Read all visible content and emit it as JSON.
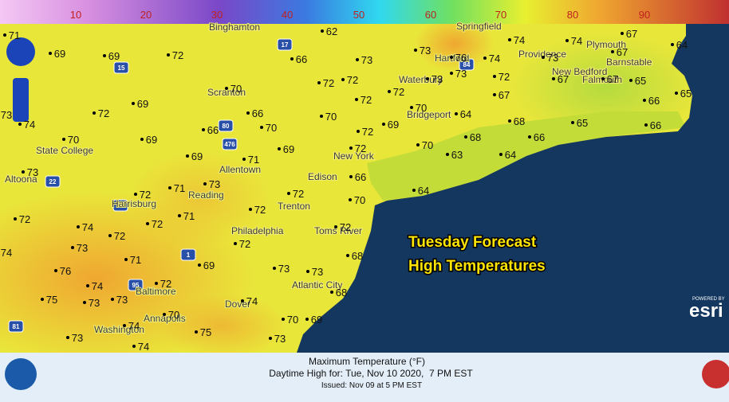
{
  "color_scale": {
    "labels": [
      10,
      20,
      30,
      40,
      50,
      60,
      70,
      80,
      90
    ]
  },
  "cities": [
    "Binghamton",
    "Springfield",
    "Hartford",
    "Providence",
    "Plymouth",
    "Barnstable",
    "New Bedford",
    "Falmouth",
    "Waterbury",
    "Scranton",
    "Bridgeport",
    "State College",
    "New York",
    "Allentown",
    "Altoona",
    "Edison",
    "Reading",
    "Harrisburg",
    "Trenton",
    "Philadelphia",
    "Toms River",
    "Baltimore",
    "Atlantic City",
    "Annapolis",
    "Dover",
    "Washington"
  ],
  "temperatures": [
    71,
    69,
    69,
    72,
    62,
    66,
    73,
    73,
    76,
    74,
    74,
    67,
    64,
    74,
    73,
    67,
    73,
    72,
    67,
    67,
    65,
    72,
    72,
    73,
    72,
    72,
    70,
    67,
    66,
    65,
    73,
    74,
    72,
    69,
    66,
    70,
    70,
    70,
    64,
    68,
    65,
    66,
    66,
    69,
    72,
    70,
    69,
    68,
    66,
    70,
    72,
    69,
    63,
    64,
    69,
    71,
    73,
    66,
    64,
    72,
    71,
    73,
    72,
    70,
    72,
    72,
    72,
    71,
    74,
    72,
    72,
    74,
    73,
    72,
    71,
    69,
    68,
    76,
    73,
    73,
    74,
    72,
    73,
    73,
    75,
    70,
    74,
    68,
    70,
    69,
    74,
    75,
    73,
    73,
    74
  ],
  "highways": [
    "80",
    "476",
    "15",
    "17",
    "22",
    "76",
    "1",
    "95",
    "84",
    "81"
  ],
  "caption": {
    "line1": "Tuesday Forecast",
    "line2": "High Temperatures"
  },
  "footer": {
    "title": "Maximum Temperature (°F)",
    "valid": "Daytime High for: Tue, Nov 10 2020,  7 PM EST",
    "issued": "Issued: Nov 09 at 5 PM EST"
  },
  "attribution": {
    "powered": "POWERED BY",
    "brand": "esri"
  }
}
